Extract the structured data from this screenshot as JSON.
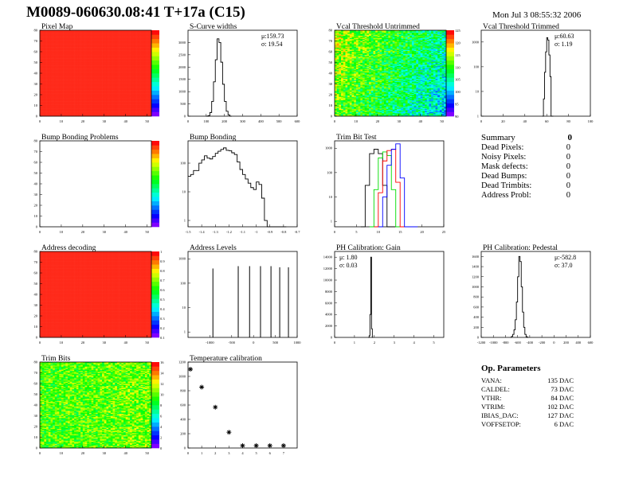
{
  "header": {
    "title": "M0089-060630.08:41 T+17a (C15)",
    "date": "Mon Jul  3 08:55:32 2006"
  },
  "colors": {
    "frame": "#000000",
    "heat_high": "#ff2a1a",
    "series": [
      "#000000",
      "#00dd00",
      "#ff0000",
      "#0000ff"
    ]
  },
  "summary": {
    "title": "Summary",
    "total": "0",
    "items": [
      {
        "label": "Dead Pixels:",
        "value": "0"
      },
      {
        "label": "Noisy Pixels:",
        "value": "0"
      },
      {
        "label": "Mask defects:",
        "value": "0"
      },
      {
        "label": "Dead Bumps:",
        "value": "0"
      },
      {
        "label": "Dead Trimbits:",
        "value": "0"
      },
      {
        "label": "Address Probl:",
        "value": "0"
      }
    ]
  },
  "op_params": {
    "title": "Op. Parameters",
    "items": [
      {
        "label": "VANA:",
        "value": "135 DAC"
      },
      {
        "label": "CALDEL:",
        "value": "73 DAC"
      },
      {
        "label": "VTHR:",
        "value": "84 DAC"
      },
      {
        "label": "VTRIM:",
        "value": "102 DAC"
      },
      {
        "label": "IBIAS_DAC:",
        "value": "127 DAC"
      },
      {
        "label": "VOFFSETOP:",
        "value": "6 DAC"
      }
    ]
  },
  "chart_data": [
    {
      "id": "pixel-map",
      "type": "heatmap",
      "title": "Pixel Map",
      "xlim": [
        0,
        52
      ],
      "ylim": [
        0,
        80
      ],
      "xticks": [
        0,
        10,
        20,
        30,
        40,
        50
      ],
      "yticks": [
        0,
        10,
        20,
        30,
        40,
        50,
        60,
        70,
        80
      ],
      "zticks": [],
      "fill": "uniform-high"
    },
    {
      "id": "s-curve-widths",
      "type": "histogram",
      "title": "S-Curve widths",
      "xlim": [
        0,
        600
      ],
      "ylim": [
        0,
        3500
      ],
      "xticks": [
        0,
        100,
        200,
        300,
        400,
        500,
        600
      ],
      "yticks": [
        0,
        500,
        1000,
        1500,
        2000,
        2500,
        3000
      ],
      "x": [
        100,
        110,
        120,
        130,
        140,
        150,
        160,
        170,
        180,
        190,
        200,
        210,
        220,
        230
      ],
      "values": [
        0,
        20,
        150,
        600,
        1400,
        2300,
        3150,
        3000,
        2200,
        1300,
        600,
        200,
        50,
        0
      ],
      "stats": [
        "μ:159.73",
        "σ: 19.54"
      ]
    },
    {
      "id": "vcal-threshold-untrimmed",
      "type": "heatmap",
      "title": "Vcal Threshold Untrimmed",
      "xlim": [
        0,
        52
      ],
      "ylim": [
        0,
        80
      ],
      "xticks": [
        0,
        10,
        20,
        30,
        40,
        50
      ],
      "yticks": [
        0,
        10,
        20,
        30,
        40,
        50,
        60,
        70,
        80
      ],
      "zticks": [
        90,
        95,
        100,
        105,
        110,
        115,
        120,
        125
      ],
      "fill": "noise-mid"
    },
    {
      "id": "vcal-threshold-trimmed",
      "type": "histogram",
      "log": true,
      "title": "Vcal Threshold Trimmed",
      "xlim": [
        0,
        100
      ],
      "ylim": [
        1,
        3000
      ],
      "xticks": [
        0,
        20,
        40,
        60,
        80,
        100
      ],
      "yticks": [
        1,
        10,
        100,
        1000
      ],
      "x": [
        56,
        57,
        58,
        59,
        60,
        61,
        62,
        63,
        64,
        65
      ],
      "values": [
        1,
        5,
        60,
        400,
        1500,
        1200,
        300,
        40,
        1,
        1
      ],
      "stats": [
        "μ:60.63",
        "σ: 1.19"
      ]
    },
    {
      "id": "bump-bonding-problems",
      "type": "heatmap",
      "title": "Bump Bonding Problems",
      "xlim": [
        0,
        52
      ],
      "ylim": [
        0,
        80
      ],
      "xticks": [
        0,
        10,
        20,
        30,
        40,
        50
      ],
      "yticks": [
        0,
        10,
        20,
        30,
        40,
        50,
        60,
        70,
        80
      ],
      "zticks": [],
      "fill": "empty"
    },
    {
      "id": "bump-bonding",
      "type": "histogram",
      "log": true,
      "title": "Bump Bonding",
      "xlim": [
        -1.5,
        -0.7
      ],
      "ylim": [
        0.6,
        600
      ],
      "xticks": [
        -1.5,
        -1.4,
        -1.3,
        -1.2,
        -1.1,
        -1.0,
        -0.9,
        -0.8,
        -0.7
      ],
      "yticks": [
        1,
        10,
        100
      ],
      "x": [
        -1.5,
        -1.48,
        -1.46,
        -1.44,
        -1.42,
        -1.4,
        -1.38,
        -1.36,
        -1.34,
        -1.32,
        -1.3,
        -1.28,
        -1.26,
        -1.24,
        -1.22,
        -1.2,
        -1.18,
        -1.16,
        -1.14,
        -1.12,
        -1.1,
        -1.08,
        -1.06,
        -1.04,
        -1.02,
        -1.0,
        -0.98,
        -0.96,
        -0.94,
        -0.92,
        -0.9,
        -0.88,
        -0.86,
        -0.84,
        -0.82,
        -0.8
      ],
      "values": [
        35,
        40,
        55,
        55,
        100,
        130,
        180,
        150,
        140,
        170,
        220,
        260,
        300,
        340,
        280,
        270,
        230,
        200,
        110,
        60,
        40,
        28,
        20,
        14,
        12,
        22,
        18,
        6,
        1,
        0.6,
        0.6,
        0.6,
        0.6,
        0.6,
        0.6,
        0.6
      ]
    },
    {
      "id": "trim-bit-test",
      "type": "histogram",
      "log": true,
      "title": "Trim Bit Test",
      "xlim": [
        0,
        25
      ],
      "ylim": [
        0.6,
        2000
      ],
      "xticks": [
        0,
        5,
        10,
        15,
        20,
        25
      ],
      "yticks": [
        1,
        10,
        100,
        1000
      ],
      "series": [
        {
          "x": [
            6,
            7,
            8,
            9,
            10,
            11,
            12,
            13,
            14
          ],
          "values": [
            0.6,
            30,
            600,
            900,
            600,
            30,
            0.6,
            0.6,
            0.6
          ]
        },
        {
          "x": [
            8,
            9,
            10,
            11,
            12,
            13,
            14,
            15,
            16
          ],
          "values": [
            0.6,
            20,
            400,
            700,
            500,
            20,
            0.6,
            0.6,
            0.6
          ]
        },
        {
          "x": [
            9,
            10,
            11,
            12,
            13,
            14,
            15,
            16,
            17
          ],
          "values": [
            0.6,
            15,
            300,
            800,
            900,
            40,
            0.6,
            0.6,
            0.6
          ]
        },
        {
          "x": [
            10,
            11,
            12,
            13,
            14,
            15,
            16,
            17,
            18
          ],
          "values": [
            0.6,
            10,
            200,
            900,
            1500,
            60,
            0.6,
            0.6,
            0.6
          ]
        }
      ]
    },
    {
      "id": "address-decoding",
      "type": "heatmap",
      "title": "Address decoding",
      "xlim": [
        0,
        52
      ],
      "ylim": [
        0,
        80
      ],
      "xticks": [
        0,
        10,
        20,
        30,
        40,
        50
      ],
      "yticks": [
        0,
        10,
        20,
        30,
        40,
        50,
        60,
        70,
        80
      ],
      "zticks": [
        0.1,
        0.2,
        0.3,
        0.4,
        0.5,
        0.6,
        0.7,
        0.8,
        0.9,
        1
      ],
      "fill": "uniform-high"
    },
    {
      "id": "address-levels",
      "type": "spikes",
      "log": true,
      "title": "Address Levels",
      "xlim": [
        -1500,
        1000
      ],
      "ylim": [
        0.6,
        2000
      ],
      "xticks": [
        -1000,
        -500,
        0,
        500,
        1000
      ],
      "yticks": [
        1,
        10,
        100,
        1000
      ],
      "x": [
        -930,
        -350,
        -90,
        160,
        400,
        600,
        800
      ],
      "values": [
        400,
        500,
        500,
        500,
        500,
        450,
        450
      ]
    },
    {
      "id": "ph-calibration-gain",
      "type": "histogram",
      "title": "PH Calibration: Gain",
      "xlim": [
        0,
        5.5
      ],
      "ylim": [
        0,
        15000
      ],
      "xticks": [
        0,
        1,
        2,
        3,
        4,
        5
      ],
      "yticks": [
        0,
        2000,
        4000,
        6000,
        8000,
        10000,
        12000,
        14000
      ],
      "x": [
        1.7,
        1.74,
        1.78,
        1.82,
        1.86,
        1.9
      ],
      "values": [
        0,
        300,
        4000,
        14000,
        1500,
        0
      ],
      "stats": [
        "μ: 1.80",
        "σ: 0.03"
      ]
    },
    {
      "id": "ph-calibration-pedestal",
      "type": "histogram",
      "title": "PH Calibration: Pedestal",
      "xlim": [
        -1200,
        600
      ],
      "ylim": [
        0,
        1700
      ],
      "xticks": [
        -1200,
        -1000,
        -800,
        -600,
        -400,
        -200,
        0,
        200,
        400,
        600
      ],
      "yticks": [
        0,
        200,
        400,
        600,
        800,
        1000,
        1200,
        1400,
        1600
      ],
      "x": [
        -720,
        -700,
        -680,
        -660,
        -640,
        -620,
        -600,
        -580,
        -560,
        -540,
        -520,
        -500,
        -480,
        -460,
        -440
      ],
      "values": [
        0,
        20,
        60,
        150,
        350,
        700,
        1200,
        1600,
        1500,
        1000,
        500,
        200,
        60,
        15,
        0
      ],
      "stats": [
        "μ:-582.8",
        "σ: 37.0"
      ]
    },
    {
      "id": "trim-bits",
      "type": "heatmap",
      "title": "Trim Bits",
      "xlim": [
        0,
        52
      ],
      "ylim": [
        0,
        80
      ],
      "xticks": [
        0,
        10,
        20,
        30,
        40,
        50
      ],
      "yticks": [
        0,
        10,
        20,
        30,
        40,
        50,
        60,
        70,
        80
      ],
      "zticks": [
        0,
        2,
        4,
        6,
        8,
        10,
        12,
        14,
        16
      ],
      "fill": "noise-trim"
    },
    {
      "id": "temperature-calibration",
      "type": "scatter",
      "title": "Temperature calibration",
      "xlim": [
        0,
        8
      ],
      "ylim": [
        0,
        1200
      ],
      "xticks": [
        0,
        1,
        2,
        3,
        4,
        5,
        6,
        7
      ],
      "yticks": [
        0,
        200,
        400,
        600,
        800,
        1000,
        1200
      ],
      "x": [
        0,
        1,
        2,
        3,
        4,
        5,
        6,
        7
      ],
      "values": [
        1100,
        850,
        570,
        220,
        10,
        10,
        10,
        10
      ]
    }
  ]
}
